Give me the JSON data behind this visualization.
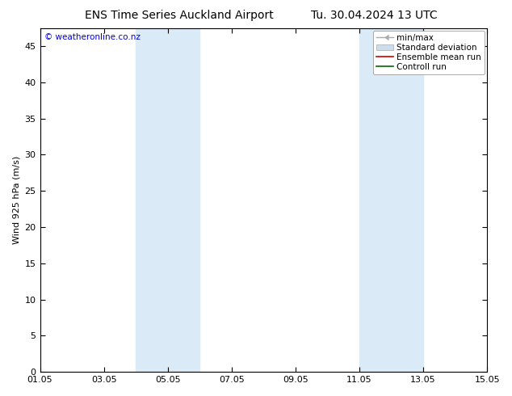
{
  "title_left": "ENS Time Series Auckland Airport",
  "title_right": "Tu. 30.04.2024 13 UTC",
  "ylabel": "Wind 925 hPa (m/s)",
  "watermark": "© weatheronline.co.nz",
  "watermark_color": "#0000dd",
  "ylim": [
    0,
    47.5
  ],
  "yticks": [
    0,
    5,
    10,
    15,
    20,
    25,
    30,
    35,
    40,
    45
  ],
  "xtick_labels": [
    "01.05",
    "03.05",
    "05.05",
    "07.05",
    "09.05",
    "11.05",
    "13.05",
    "15.05"
  ],
  "xtick_positions": [
    0,
    2,
    4,
    6,
    8,
    10,
    12,
    14
  ],
  "xlim": [
    0,
    14
  ],
  "shaded_bands": [
    {
      "xmin": 3.0,
      "xmax": 5.0,
      "color": "#daeaf7"
    },
    {
      "xmin": 10.0,
      "xmax": 12.0,
      "color": "#daeaf7"
    }
  ],
  "background_color": "#ffffff",
  "plot_bg_color": "#ffffff",
  "title_fontsize": 10,
  "axis_fontsize": 8,
  "tick_fontsize": 8,
  "legend_fontsize": 7.5
}
